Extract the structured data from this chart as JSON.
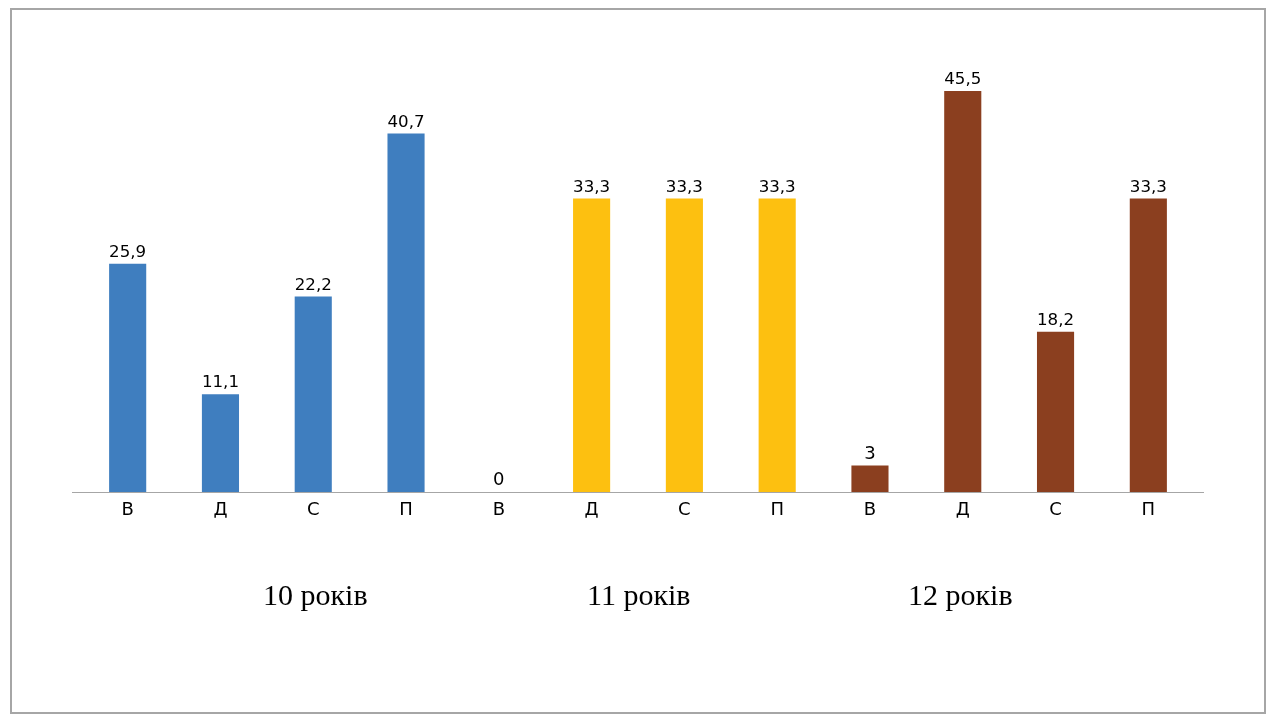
{
  "chart_data": {
    "type": "bar",
    "categories": [
      "В",
      "Д",
      "С",
      "П",
      "В",
      "Д",
      "С",
      "П",
      "В",
      "Д",
      "С",
      "П"
    ],
    "values": [
      25.9,
      11.1,
      22.2,
      40.7,
      0,
      33.3,
      33.3,
      33.3,
      3,
      45.5,
      18.2,
      33.3
    ],
    "colors": [
      "#3f7ebf",
      "#3f7ebf",
      "#3f7ebf",
      "#3f7ebf",
      "#fdc010",
      "#fdc010",
      "#fdc010",
      "#fdc010",
      "#8b3f1f",
      "#8b3f1f",
      "#8b3f1f",
      "#8b3f1f"
    ],
    "value_labels": [
      "25,9",
      "11,1",
      "22,2",
      "40,7",
      "0",
      "33,3",
      "33,3",
      "33,3",
      "3",
      "45,5",
      "18,2",
      "33,3"
    ],
    "grid": false,
    "legend": false,
    "annotations": [
      "10 років",
      "11 років",
      "12 років"
    ]
  }
}
